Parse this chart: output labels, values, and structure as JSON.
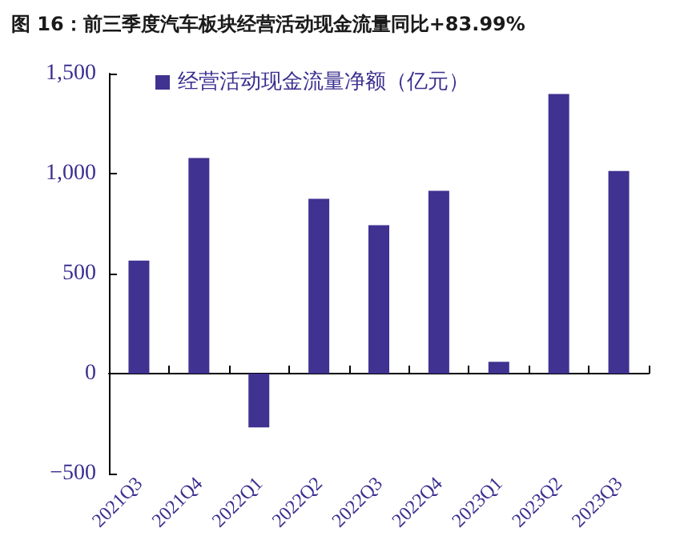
{
  "chart_data": {
    "type": "bar",
    "title": "图 16：前三季度汽车板块经营活动现金流量同比+83.99%",
    "categories": [
      "2021Q3",
      "2021Q4",
      "2022Q1",
      "2022Q2",
      "2022Q3",
      "2022Q4",
      "2023Q1",
      "2023Q2",
      "2023Q3"
    ],
    "series": [
      {
        "name": "经营活动现金流量净额（亿元）",
        "color": "#3f3290",
        "values": [
          565,
          1078,
          -269,
          874,
          742,
          914,
          59,
          1398,
          1013
        ]
      }
    ],
    "ylim": [
      -500,
      1500
    ],
    "yticks": [
      {
        "value": -500,
        "label": "−500"
      },
      0,
      500,
      {
        "value": 1000,
        "label": "1,000"
      },
      {
        "value": 1500,
        "label": "1,500"
      }
    ],
    "legend": "top left"
  }
}
